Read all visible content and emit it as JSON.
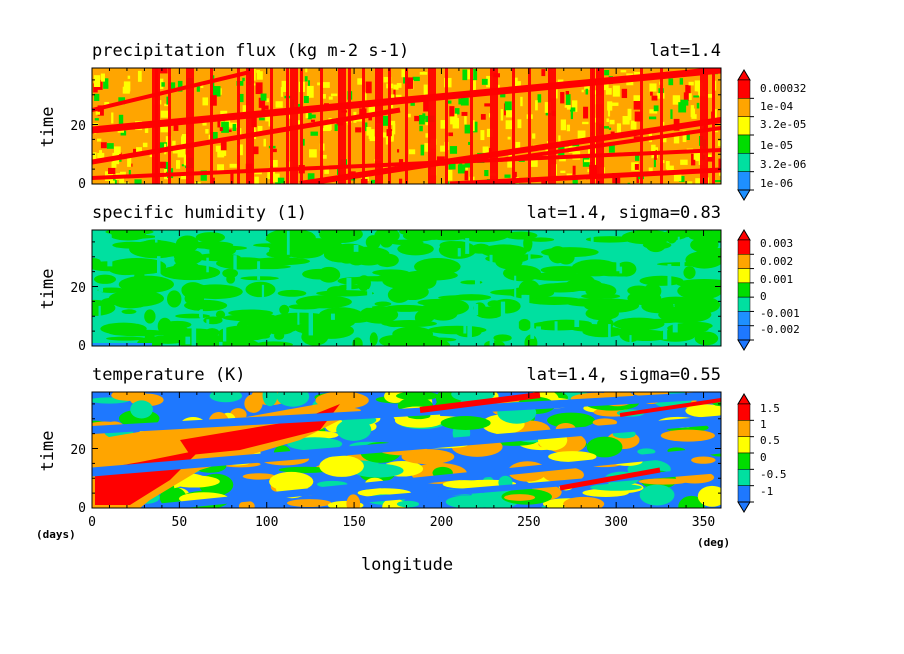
{
  "chart_data": [
    {
      "type": "heatmap",
      "title": "precipitation flux (kg m-2 s-1)",
      "annotation": "lat=1.4",
      "xlabel": "longitude",
      "ylabel": "time",
      "xlim": [
        0,
        360
      ],
      "ylim": [
        0,
        39
      ],
      "y_ticks": [
        "0",
        "20"
      ],
      "colorbar_labels": [
        "0.00032",
        "1e-04",
        "3.2e-05",
        "1e-05",
        "3.2e-06",
        "1e-06"
      ],
      "colors": [
        "#1e90ff",
        "#00e0a0",
        "#00dd00",
        "#ffff00",
        "#ffa500",
        "#ff0000"
      ],
      "base_color": "#ffa500"
    },
    {
      "type": "heatmap",
      "title": "specific humidity (1)",
      "annotation": "lat=1.4, sigma=0.83",
      "xlabel": "longitude",
      "ylabel": "time",
      "xlim": [
        0,
        360
      ],
      "ylim": [
        0,
        39
      ],
      "y_ticks": [
        "0",
        "20"
      ],
      "colorbar_labels": [
        "0.003",
        "0.002",
        "0.001",
        "0",
        "-0.001",
        "-0.002"
      ],
      "colors": [
        "#1e78ff",
        "#1e90ff",
        "#00e0a0",
        "#00dd00",
        "#ffff00",
        "#ffa500",
        "#ff0000"
      ],
      "base_color": "#00e0a0"
    },
    {
      "type": "heatmap",
      "title": "temperature (K)",
      "annotation": "lat=1.4, sigma=0.55",
      "xlabel": "longitude",
      "ylabel": "time",
      "xlim": [
        0,
        360
      ],
      "ylim": [
        0,
        39
      ],
      "y_ticks": [
        "0",
        "20"
      ],
      "x_ticks": [
        "0",
        "50",
        "100",
        "150",
        "200",
        "250",
        "300",
        "350"
      ],
      "x_unit": "(deg)",
      "y_unit": "(days)",
      "colorbar_labels": [
        "1.5",
        "1",
        "0.5",
        "0",
        "-0.5",
        "-1"
      ],
      "colors": [
        "#1e78ff",
        "#00e0a0",
        "#00dd00",
        "#ffff00",
        "#ffa500",
        "#ff0000"
      ],
      "base_color": "#1e78ff"
    }
  ]
}
